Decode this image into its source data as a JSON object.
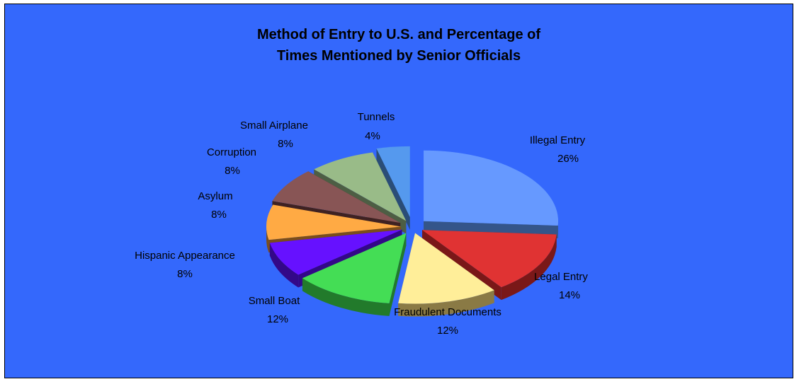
{
  "chart_data": {
    "type": "pie",
    "title_lines": [
      "Method of Entry to U.S. and Percentage of",
      "Times Mentioned by Senior Officials"
    ],
    "slices": [
      {
        "label": "Illegal Entry",
        "value": 26,
        "pct_label": "26%",
        "color": "#6699ff",
        "side": "#34558a"
      },
      {
        "label": "Legal Entry",
        "value": 14,
        "pct_label": "14%",
        "color": "#e03333",
        "side": "#7a1818"
      },
      {
        "label": "Fraudulent Documents",
        "value": 12,
        "pct_label": "12%",
        "color": "#ffee99",
        "side": "#8a7a45"
      },
      {
        "label": "Small Boat",
        "value": 12,
        "pct_label": "12%",
        "color": "#44dd55",
        "side": "#227a2b"
      },
      {
        "label": "Hispanic Appearance",
        "value": 8,
        "pct_label": "8%",
        "color": "#6611ff",
        "side": "#330888"
      },
      {
        "label": "Asylum",
        "value": 8,
        "pct_label": "8%",
        "color": "#ffaa44",
        "side": "#7a4d1a"
      },
      {
        "label": "Corruption",
        "value": 8,
        "pct_label": "8%",
        "color": "#885555",
        "side": "#3f2222"
      },
      {
        "label": "Small Airplane",
        "value": 8,
        "pct_label": "8%",
        "color": "#99bb88",
        "side": "#4d5e44"
      },
      {
        "label": "Tunnels",
        "value": 4,
        "pct_label": "4%",
        "color": "#5599ee",
        "side": "#2a4d77"
      }
    ],
    "colors": {
      "background": "#3468fc",
      "border": "#000000"
    },
    "legend": "none"
  }
}
